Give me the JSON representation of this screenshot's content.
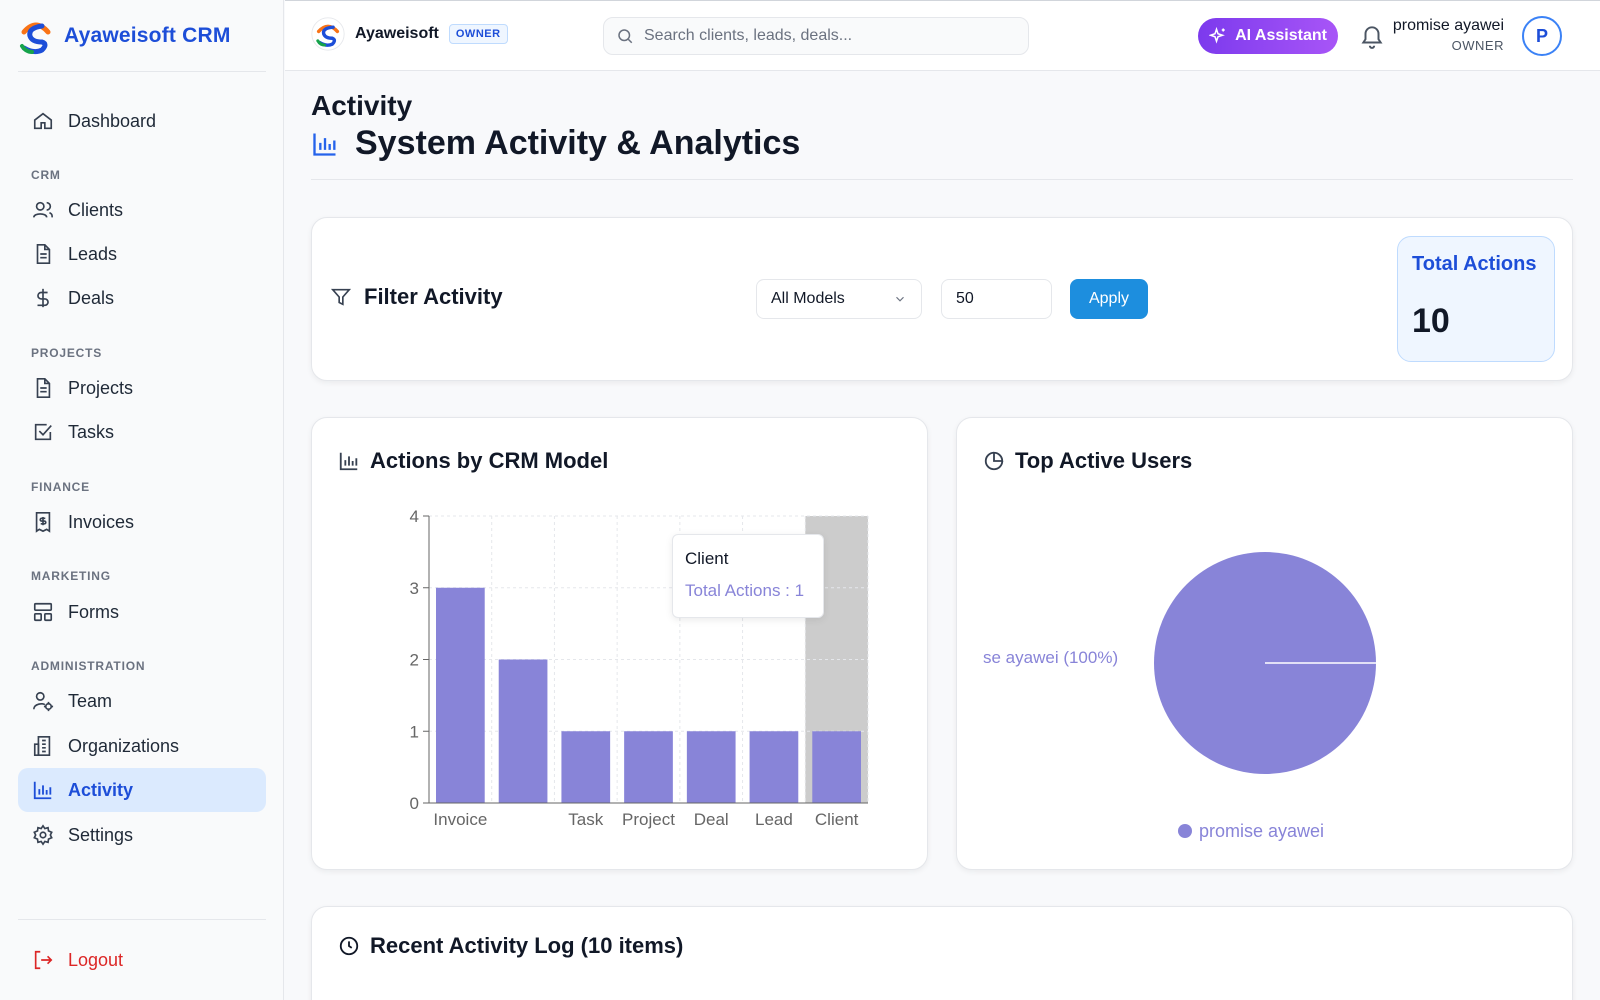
{
  "brand": {
    "name": "Ayaweisoft CRM"
  },
  "sidebar": {
    "dashboard": "Dashboard",
    "sections": {
      "crm": "CRM",
      "projects": "PROJECTS",
      "finance": "FINANCE",
      "marketing": "MARKETING",
      "administration": "ADMINISTRATION"
    },
    "items": {
      "clients": "Clients",
      "leads": "Leads",
      "deals": "Deals",
      "projects": "Projects",
      "tasks": "Tasks",
      "invoices": "Invoices",
      "forms": "Forms",
      "team": "Team",
      "organizations": "Organizations",
      "activity": "Activity",
      "settings": "Settings"
    },
    "logout": "Logout"
  },
  "header": {
    "org_name": "Ayaweisoft",
    "org_badge": "OWNER",
    "search_placeholder": "Search clients, leads, deals...",
    "ai_button": "AI Assistant",
    "user_name": "promise ayawei",
    "user_role": "OWNER",
    "avatar_initial": "P"
  },
  "page": {
    "title": "Activity",
    "subtitle": "System Activity & Analytics"
  },
  "filter": {
    "title": "Filter Activity",
    "model_select_value": "All Models",
    "limit_value": "50",
    "apply_label": "Apply",
    "total_label": "Total Actions",
    "total_value": "10"
  },
  "bar_card": {
    "title": "Actions by CRM Model"
  },
  "pie_card": {
    "title": "Top Active Users"
  },
  "log_card": {
    "title": "Recent Activity Log (10 items)"
  },
  "tooltip": {
    "title": "Client",
    "value": "Total Actions : 1"
  },
  "colors": {
    "accent": "#1d4ed8",
    "bar": "#8884d8",
    "active_bg": "#dbeafe",
    "logout": "#dc2626"
  },
  "chart_data": [
    {
      "type": "bar",
      "title": "Actions by CRM Model",
      "categories": [
        "Invoice",
        "",
        "Task",
        "Project",
        "Deal",
        "Lead",
        "Client"
      ],
      "values": [
        3,
        2,
        1,
        1,
        1,
        1,
        1
      ],
      "ylim": [
        0,
        4
      ],
      "yticks": [
        0,
        1,
        2,
        3,
        4
      ],
      "grid": true,
      "highlighted_category": "Client"
    },
    {
      "type": "pie",
      "title": "Top Active Users",
      "labels": [
        "promise ayawei"
      ],
      "values": [
        100
      ],
      "slice_label": "se ayawei (100%)",
      "legend": "bottom"
    }
  ]
}
